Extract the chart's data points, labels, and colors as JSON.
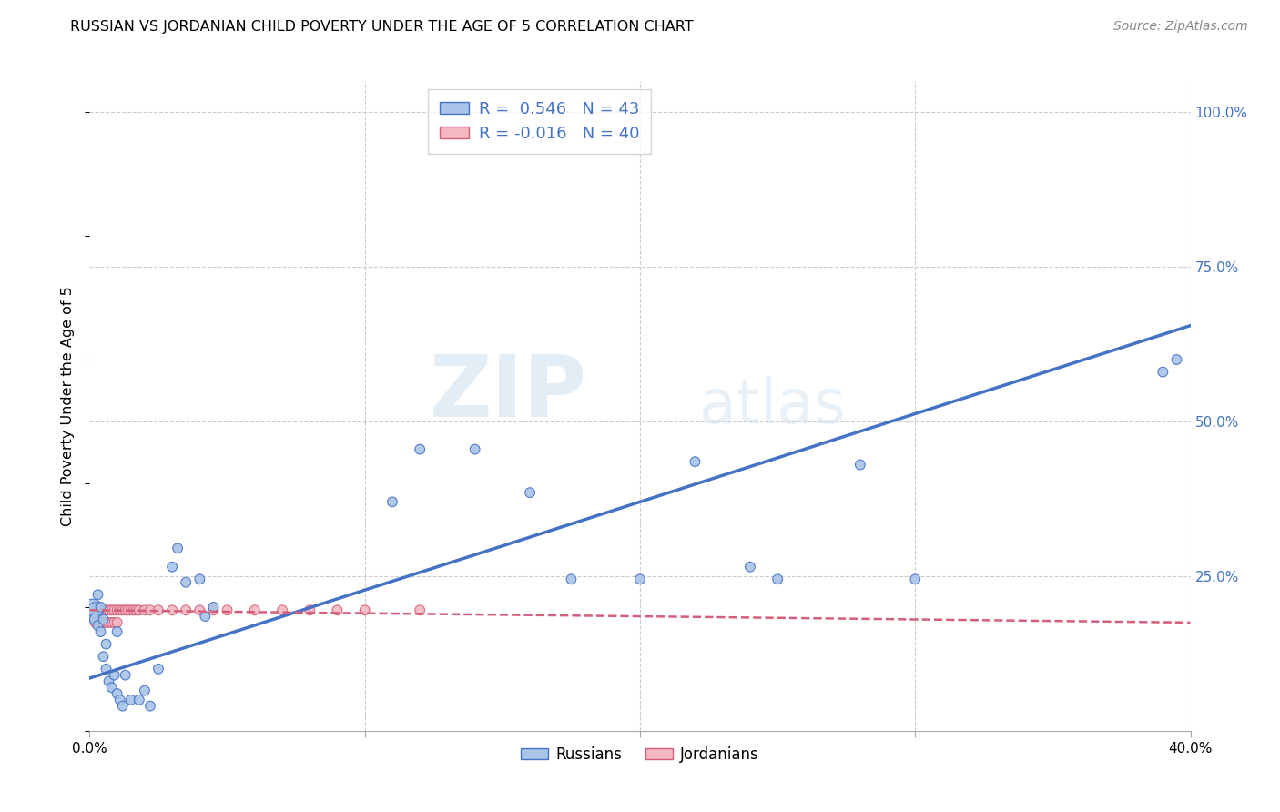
{
  "title": "RUSSIAN VS JORDANIAN CHILD POVERTY UNDER THE AGE OF 5 CORRELATION CHART",
  "source": "Source: ZipAtlas.com",
  "ylabel": "Child Poverty Under the Age of 5",
  "xlim": [
    0.0,
    0.4
  ],
  "ylim": [
    0.0,
    1.05
  ],
  "r_russian": "0.546",
  "n_russian": "43",
  "r_jordanian": "-0.016",
  "n_jordanian": "40",
  "russian_color": "#a8c4e8",
  "russian_line_color": "#4472c4",
  "jordanian_color": "#f4b8c1",
  "jordanian_line_color": "#d45f7a",
  "background_color": "#ffffff",
  "grid_color": "#cccccc",
  "watermark_big": "ZIP",
  "watermark_small": "atlas",
  "russians_x": [
    0.001,
    0.002,
    0.002,
    0.003,
    0.003,
    0.004,
    0.004,
    0.005,
    0.005,
    0.006,
    0.006,
    0.007,
    0.008,
    0.009,
    0.01,
    0.01,
    0.011,
    0.012,
    0.013,
    0.015,
    0.018,
    0.02,
    0.022,
    0.025,
    0.03,
    0.032,
    0.035,
    0.04,
    0.042,
    0.045,
    0.11,
    0.12,
    0.14,
    0.16,
    0.175,
    0.2,
    0.22,
    0.24,
    0.25,
    0.28,
    0.3,
    0.39,
    0.395
  ],
  "russians_y": [
    0.195,
    0.195,
    0.18,
    0.17,
    0.22,
    0.2,
    0.16,
    0.18,
    0.12,
    0.14,
    0.1,
    0.08,
    0.07,
    0.09,
    0.06,
    0.16,
    0.05,
    0.04,
    0.09,
    0.05,
    0.05,
    0.065,
    0.04,
    0.1,
    0.265,
    0.295,
    0.24,
    0.245,
    0.185,
    0.2,
    0.37,
    0.455,
    0.455,
    0.385,
    0.245,
    0.245,
    0.435,
    0.265,
    0.245,
    0.43,
    0.245,
    0.58,
    0.6
  ],
  "russians_size": [
    300,
    150,
    80,
    60,
    60,
    60,
    60,
    60,
    60,
    60,
    60,
    60,
    60,
    60,
    60,
    60,
    60,
    60,
    60,
    60,
    60,
    60,
    60,
    60,
    60,
    60,
    60,
    60,
    60,
    60,
    60,
    60,
    60,
    60,
    60,
    60,
    60,
    60,
    60,
    60,
    60,
    60,
    60
  ],
  "jordanians_x": [
    0.001,
    0.002,
    0.002,
    0.003,
    0.003,
    0.004,
    0.005,
    0.005,
    0.006,
    0.006,
    0.007,
    0.007,
    0.008,
    0.008,
    0.009,
    0.009,
    0.01,
    0.01,
    0.011,
    0.012,
    0.013,
    0.014,
    0.015,
    0.016,
    0.017,
    0.018,
    0.02,
    0.022,
    0.025,
    0.03,
    0.035,
    0.04,
    0.045,
    0.05,
    0.06,
    0.07,
    0.08,
    0.09,
    0.1,
    0.12
  ],
  "jordanians_y": [
    0.195,
    0.195,
    0.175,
    0.175,
    0.195,
    0.195,
    0.175,
    0.195,
    0.175,
    0.195,
    0.175,
    0.195,
    0.175,
    0.195,
    0.175,
    0.195,
    0.175,
    0.195,
    0.195,
    0.195,
    0.195,
    0.195,
    0.195,
    0.195,
    0.195,
    0.195,
    0.195,
    0.195,
    0.195,
    0.195,
    0.195,
    0.195,
    0.195,
    0.195,
    0.195,
    0.195,
    0.195,
    0.195,
    0.195,
    0.195
  ],
  "jordanians_size": [
    60,
    60,
    60,
    60,
    60,
    60,
    60,
    60,
    60,
    60,
    60,
    60,
    60,
    60,
    60,
    60,
    60,
    60,
    60,
    60,
    60,
    60,
    60,
    60,
    60,
    60,
    60,
    60,
    60,
    60,
    60,
    60,
    60,
    60,
    60,
    60,
    60,
    60,
    60,
    60
  ],
  "rus_trendline_x": [
    0.0,
    0.4
  ],
  "rus_trendline_y": [
    0.085,
    0.655
  ],
  "jor_trendline_x": [
    0.0,
    0.4
  ],
  "jor_trendline_y": [
    0.195,
    0.175
  ],
  "yticks": [
    0.0,
    0.25,
    0.5,
    0.75,
    1.0
  ],
  "ytick_labels": [
    "",
    "25.0%",
    "50.0%",
    "75.0%",
    "100.0%"
  ],
  "xticks": [
    0.0,
    0.1,
    0.2,
    0.3,
    0.4
  ],
  "xtick_labels": [
    "0.0%",
    "",
    "",
    "",
    "40.0%"
  ]
}
